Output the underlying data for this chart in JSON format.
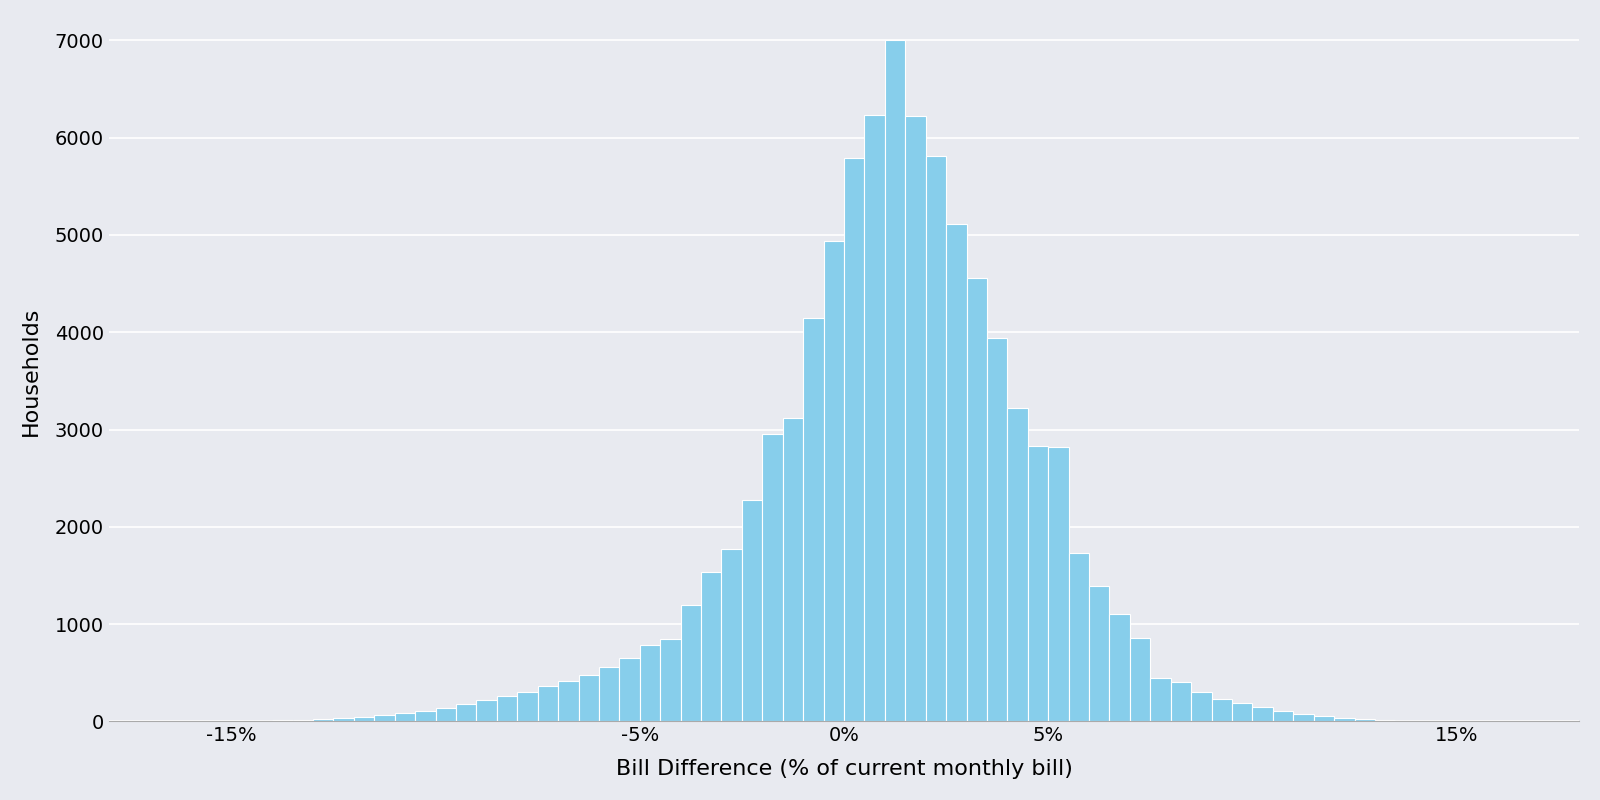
{
  "bar_heights": [
    5,
    8,
    12,
    18,
    25,
    35,
    50,
    65,
    85,
    110,
    140,
    175,
    215,
    260,
    305,
    360,
    420,
    480,
    560,
    650,
    785,
    850,
    1200,
    1540,
    1770,
    2280,
    2950,
    3120,
    4150,
    4940,
    5790,
    6230,
    7000,
    6220,
    5810,
    5110,
    4560,
    3940,
    3220,
    2830,
    2820,
    1730,
    1390,
    1100,
    860,
    450,
    400,
    300,
    230,
    185,
    145,
    110,
    80,
    55,
    35,
    20,
    10,
    5,
    3,
    1
  ],
  "bin_start": -15.0,
  "bin_width": 0.5,
  "bar_color": "#87CEEB",
  "bar_edgecolor": "#ffffff",
  "background_color": "#e8eaf0",
  "axes_facecolor": "#e8eaf0",
  "xlabel": "Bill Difference (% of current monthly bill)",
  "ylabel": "Households",
  "xlim": [
    -18,
    18
  ],
  "ylim": [
    0,
    7200
  ],
  "xticks": [
    -15,
    -5,
    0,
    5,
    15
  ],
  "xtick_labels": [
    "-15%",
    "-5%",
    "0%",
    "5%",
    "15%"
  ],
  "yticks": [
    0,
    1000,
    2000,
    3000,
    4000,
    5000,
    6000,
    7000
  ],
  "grid_color": "#ffffff",
  "xlabel_fontsize": 16,
  "ylabel_fontsize": 16,
  "tick_fontsize": 14,
  "line_width": 0.8
}
